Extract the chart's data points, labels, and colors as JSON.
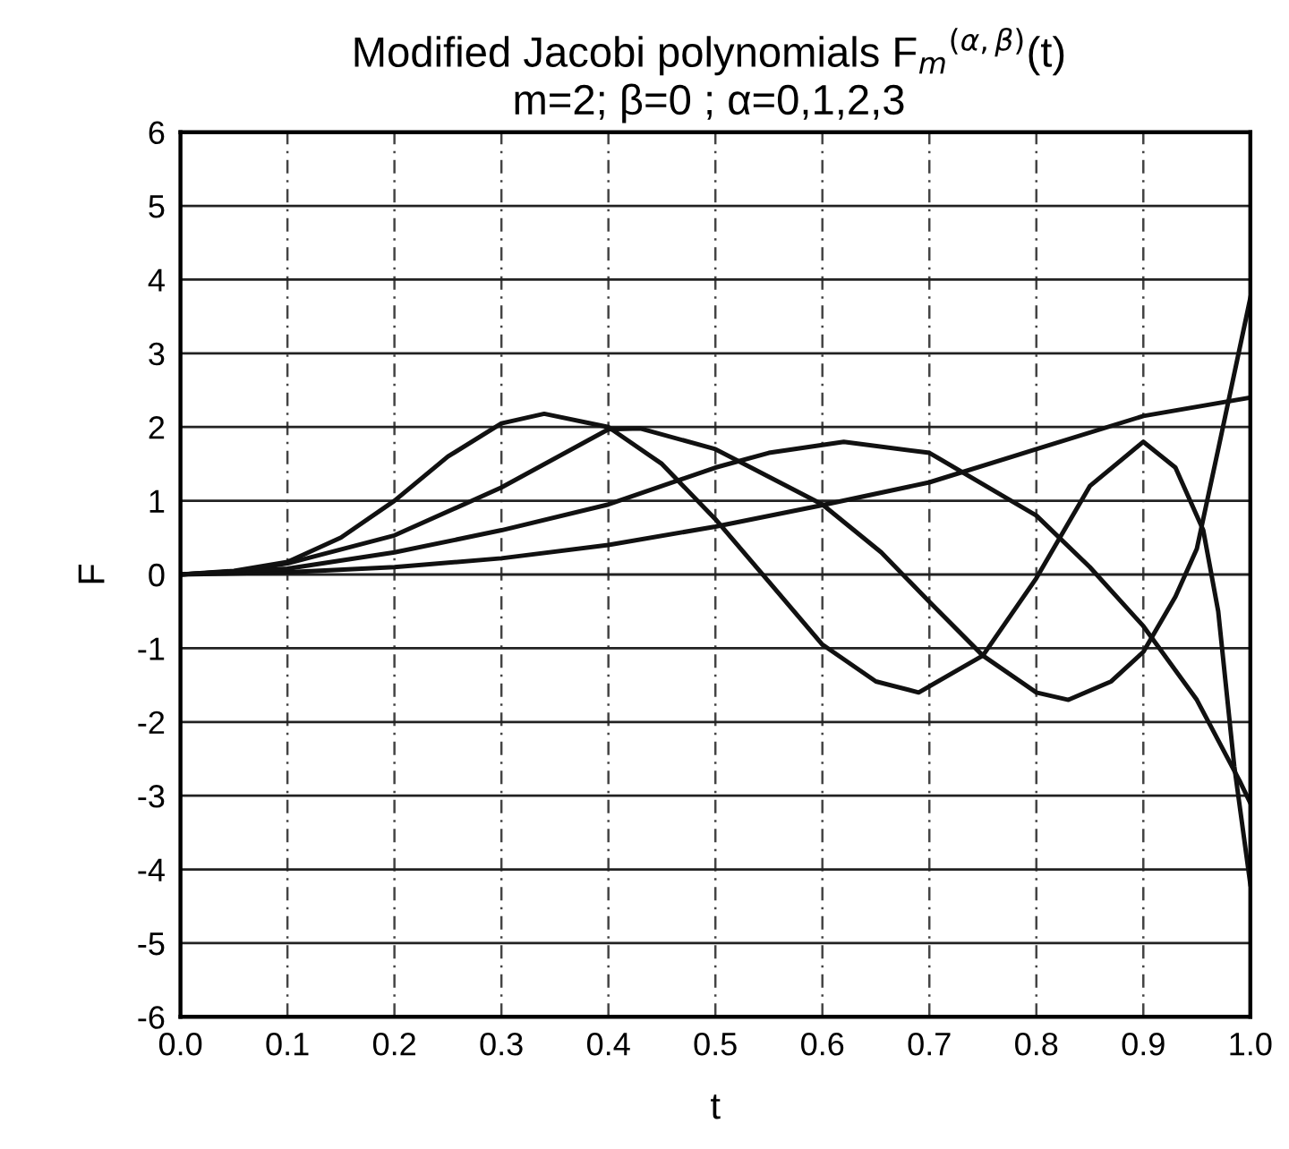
{
  "chart_data": {
    "type": "line",
    "title": "Modified Jacobi polynomials F$_{m}$$^{(α,β)}$(t)",
    "subtitle": "m=2; β=0 ; α=0,1,2,3",
    "xlabel": "t",
    "ylabel": "F",
    "xlim": [
      0,
      1
    ],
    "ylim": [
      -6,
      6
    ],
    "xticks": [
      {
        "value": 0,
        "label": "0.0"
      },
      0.1,
      0.2,
      0.3,
      0.4,
      0.5,
      0.6,
      0.7,
      0.8,
      0.9,
      {
        "value": 1,
        "label": "1.0"
      }
    ],
    "yticks": [
      -6,
      -5,
      -4,
      -3,
      -2,
      -1,
      0,
      1,
      2,
      3,
      4,
      5,
      6
    ],
    "grid": true,
    "marker": "none",
    "line_style": "solid",
    "series": [
      {
        "color": "#111111",
        "x": [
          0,
          0.1,
          0.2,
          0.3,
          0.4,
          0.5,
          0.6,
          0.7,
          0.8,
          0.9,
          1.0
        ],
        "values": [
          0,
          0.03,
          0.1,
          0.22,
          0.4,
          0.65,
          0.94,
          1.25,
          1.7,
          2.15,
          2.4
        ]
      },
      {
        "color": "#111111",
        "x": [
          0,
          0.1,
          0.2,
          0.3,
          0.4,
          0.5,
          0.55,
          0.62,
          0.7,
          0.8,
          0.85,
          0.9,
          0.95,
          0.99,
          1.0
        ],
        "values": [
          0,
          0.08,
          0.3,
          0.6,
          0.95,
          1.45,
          1.65,
          1.8,
          1.65,
          0.8,
          0.1,
          -0.7,
          -1.7,
          -2.8,
          -3.1
        ]
      },
      {
        "color": "#111111",
        "x": [
          0,
          0.05,
          0.1,
          0.2,
          0.3,
          0.4,
          0.43,
          0.5,
          0.6,
          0.655,
          0.7,
          0.75,
          0.8,
          0.83,
          0.87,
          0.9,
          0.93,
          0.95,
          0.97,
          1.0
        ],
        "values": [
          0,
          0.04,
          0.15,
          0.53,
          1.18,
          1.97,
          1.98,
          1.7,
          0.95,
          0.3,
          -0.37,
          -1.1,
          -1.6,
          -1.7,
          -1.45,
          -1.05,
          -0.3,
          0.35,
          1.7,
          3.75
        ]
      },
      {
        "color": "#111111",
        "x": [
          0,
          0.05,
          0.1,
          0.15,
          0.2,
          0.25,
          0.3,
          0.34,
          0.4,
          0.45,
          0.5,
          0.55,
          0.6,
          0.65,
          0.69,
          0.75,
          0.8,
          0.85,
          0.9,
          0.93,
          0.956,
          0.97,
          0.985,
          1.0
        ],
        "values": [
          0,
          0.05,
          0.17,
          0.5,
          1.0,
          1.6,
          2.05,
          2.18,
          2.0,
          1.5,
          0.75,
          -0.1,
          -0.95,
          -1.45,
          -1.6,
          -1.1,
          -0.05,
          1.2,
          1.8,
          1.45,
          0.6,
          -0.5,
          -2.6,
          -4.2
        ]
      }
    ]
  }
}
